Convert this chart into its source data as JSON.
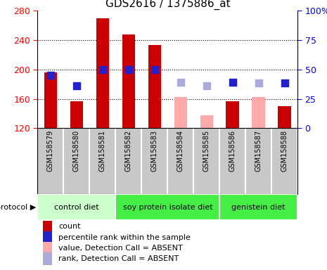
{
  "title": "GDS2616 / 1375886_at",
  "samples": [
    "GSM158579",
    "GSM158580",
    "GSM158581",
    "GSM158582",
    "GSM158583",
    "GSM158584",
    "GSM158585",
    "GSM158586",
    "GSM158587",
    "GSM158588"
  ],
  "bar_values": [
    196,
    157,
    270,
    248,
    233,
    163,
    138,
    157,
    163,
    150
  ],
  "bar_colors": [
    "#cc0000",
    "#cc0000",
    "#cc0000",
    "#cc0000",
    "#cc0000",
    "#ffaaaa",
    "#ffaaaa",
    "#cc0000",
    "#ffaaaa",
    "#cc0000"
  ],
  "rank_values": [
    192,
    178,
    200,
    200,
    200,
    183,
    178,
    183,
    182,
    182
  ],
  "rank_colors": [
    "#2222cc",
    "#2222cc",
    "#2222cc",
    "#2222cc",
    "#2222cc",
    "#aaaadd",
    "#aaaadd",
    "#2222cc",
    "#aaaadd",
    "#2222cc"
  ],
  "ylim": [
    120,
    280
  ],
  "yticks_left": [
    120,
    160,
    200,
    240,
    280
  ],
  "right_axis_labels": [
    "0",
    "25",
    "50",
    "75",
    "100%"
  ],
  "groups": [
    {
      "label": "control diet",
      "start": 0,
      "end": 3,
      "color": "#ccffcc"
    },
    {
      "label": "soy protein isolate diet",
      "start": 3,
      "end": 7,
      "color": "#44ee44"
    },
    {
      "label": "genistein diet",
      "start": 7,
      "end": 10,
      "color": "#44ee44"
    }
  ],
  "leg_colors": [
    "#cc0000",
    "#2222cc",
    "#ffaaaa",
    "#aaaadd"
  ],
  "leg_labels": [
    "count",
    "percentile rank within the sample",
    "value, Detection Call = ABSENT",
    "rank, Detection Call = ABSENT"
  ],
  "sample_bg": "#c8c8c8",
  "plot_bg": "#ffffff",
  "grid_color": "#000000",
  "title_fontsize": 11,
  "axis_fontsize": 9,
  "sample_fontsize": 7,
  "proto_fontsize": 8,
  "leg_fontsize": 8
}
